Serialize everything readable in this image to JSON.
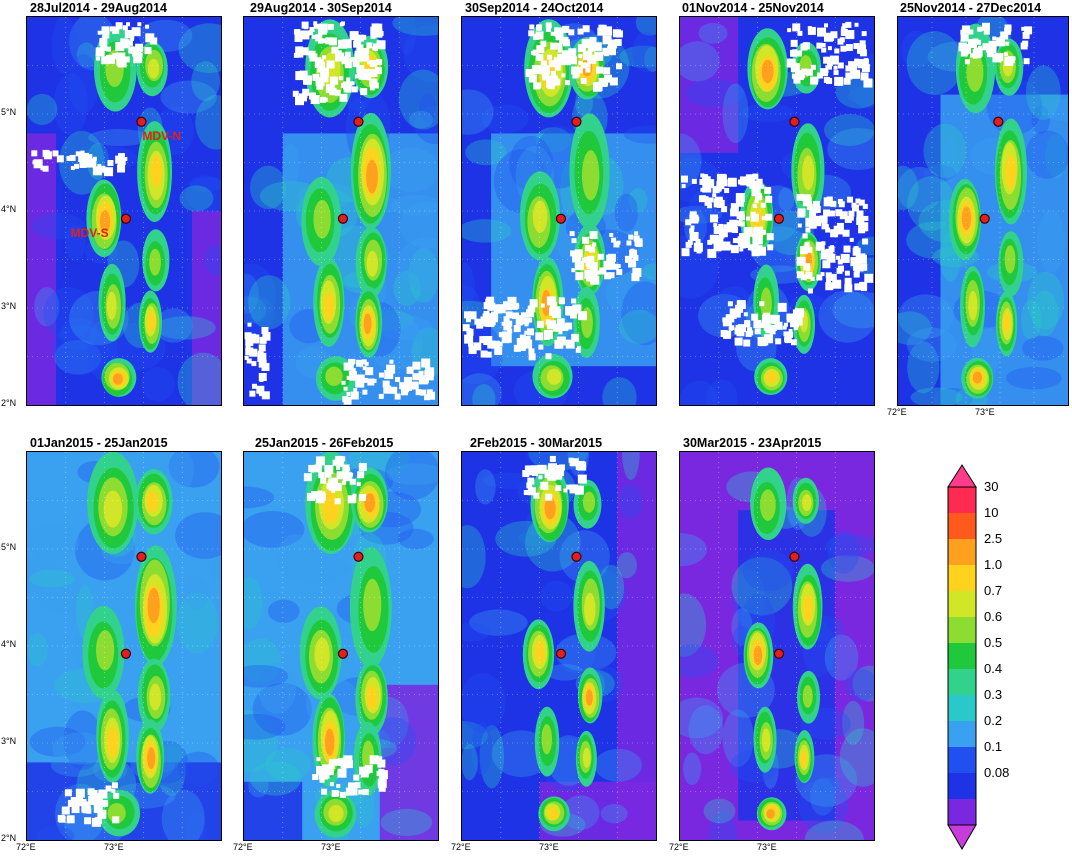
{
  "panels": [
    {
      "title": "28Jul2014 - 29Aug2014",
      "site_labels": [
        "MDV-N",
        "MDV-S"
      ],
      "lat_ticks": [
        "5°N",
        "4°N",
        "3°N",
        "2°N"
      ],
      "lon_ticks": []
    },
    {
      "title": "29Aug2014 - 30Sep2014",
      "lat_ticks": [],
      "lon_ticks": []
    },
    {
      "title": "30Sep2014 - 24Oct2014",
      "lat_ticks": [],
      "lon_ticks": []
    },
    {
      "title": "01Nov2014 - 25Nov2014",
      "lat_ticks": [],
      "lon_ticks": []
    },
    {
      "title": "25Nov2014 - 27Dec2014",
      "lat_ticks": [],
      "lon_ticks": [
        "72°E",
        "73°E"
      ]
    },
    {
      "title": "01Jan2015 - 25Jan2015",
      "lat_ticks": [
        "5°N",
        "4°N",
        "3°N",
        "2°N"
      ],
      "lon_ticks": [
        "72°E",
        "73°E"
      ]
    },
    {
      "title": "25Jan2015 - 26Feb2015",
      "lat_ticks": [],
      "lon_ticks": [
        "72°E",
        "73°E"
      ]
    },
    {
      "title": "2Feb2015 - 30Mar2015",
      "lat_ticks": [],
      "lon_ticks": [
        "72°E",
        "73°E"
      ]
    },
    {
      "title": "30Mar2015 - 23Apr2015",
      "lat_ticks": [],
      "lon_ticks": [
        "72°E",
        "73°E"
      ]
    }
  ],
  "colorbar": {
    "labels": [
      "30",
      "10",
      "2.5",
      "1.0",
      "0.7",
      "0.6",
      "0.5",
      "0.4",
      "0.3",
      "0.2",
      "0.1",
      "0.08"
    ],
    "colors": [
      "#ff2a50",
      "#ff5a1e",
      "#ffa01e",
      "#ffd21e",
      "#d2e628",
      "#8cdc32",
      "#20c83c",
      "#32d28c",
      "#2ac8c8",
      "#3aa0f0",
      "#2050f0",
      "#1e32e6",
      "#7a28e0"
    ],
    "upper_color": "#ff3c8c",
    "lower_color": "#c83cdc"
  },
  "colors": {
    "ocean": "#1d33e8",
    "cloud_gap": "#ffffff",
    "site_marker": "#e02020"
  }
}
